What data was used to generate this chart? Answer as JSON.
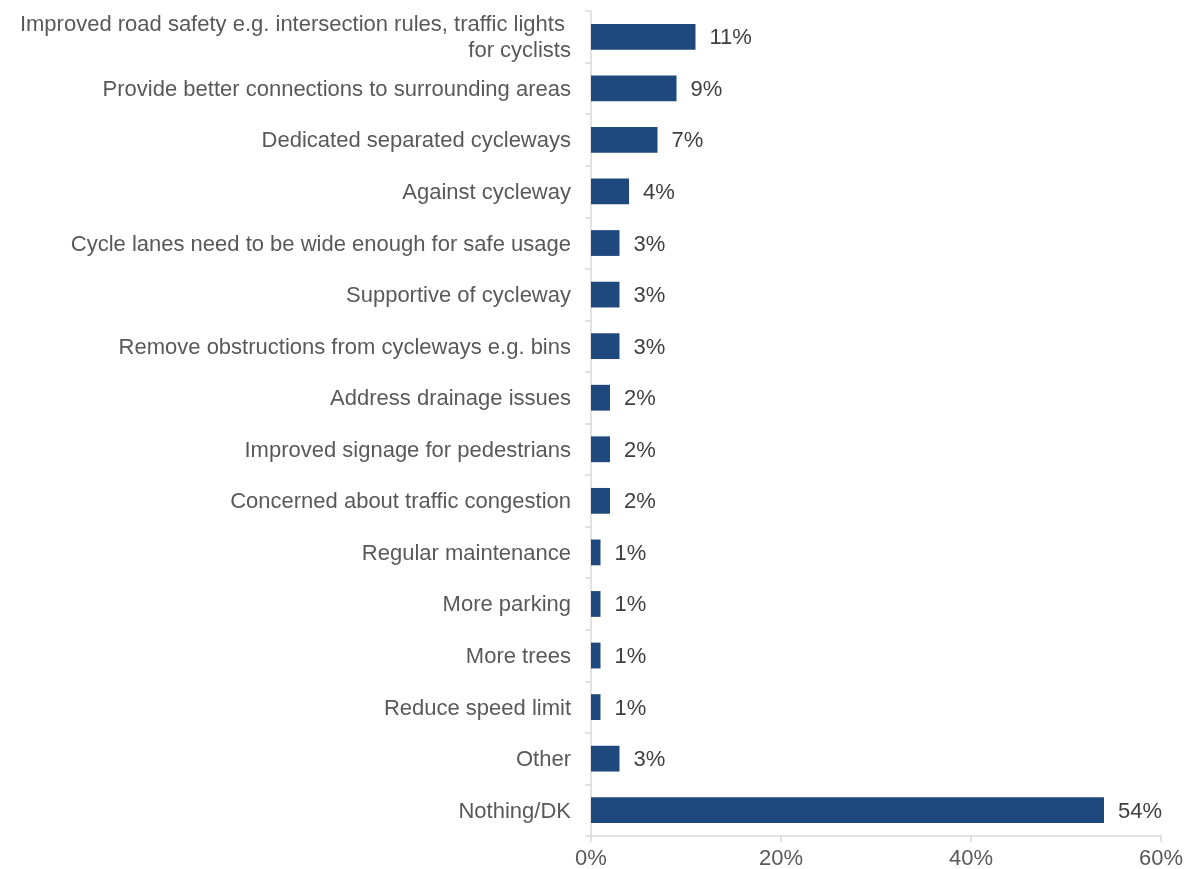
{
  "chart_data": {
    "type": "bar",
    "orientation": "horizontal",
    "categories": [
      "Improved road safety e.g. intersection rules, traffic lights for cyclists",
      "Provide better connections to surrounding areas",
      "Dedicated separated cycleways",
      "Against cycleway",
      "Cycle lanes need to be wide enough for safe usage",
      "Supportive of cycleway",
      "Remove obstructions from cycleways e.g. bins",
      "Address drainage issues",
      "Improved signage for pedestrians",
      "Concerned about traffic congestion",
      "Regular maintenance",
      "More parking",
      "More trees",
      "Reduce speed limit",
      "Other",
      "Nothing/DK"
    ],
    "values": [
      11,
      9,
      7,
      4,
      3,
      3,
      3,
      2,
      2,
      2,
      1,
      1,
      1,
      1,
      3,
      54
    ],
    "value_labels": [
      "11%",
      "9%",
      "7%",
      "4%",
      "3%",
      "3%",
      "3%",
      "2%",
      "2%",
      "2%",
      "1%",
      "1%",
      "1%",
      "1%",
      "3%",
      "54%"
    ],
    "color": "#1f497d",
    "xlim": [
      0,
      60
    ],
    "xticks": [
      {
        "value": 0,
        "label": "0%"
      },
      {
        "value": 20,
        "label": "20%"
      },
      {
        "value": 40,
        "label": "40%"
      },
      {
        "value": 60,
        "label": "60%"
      }
    ]
  }
}
